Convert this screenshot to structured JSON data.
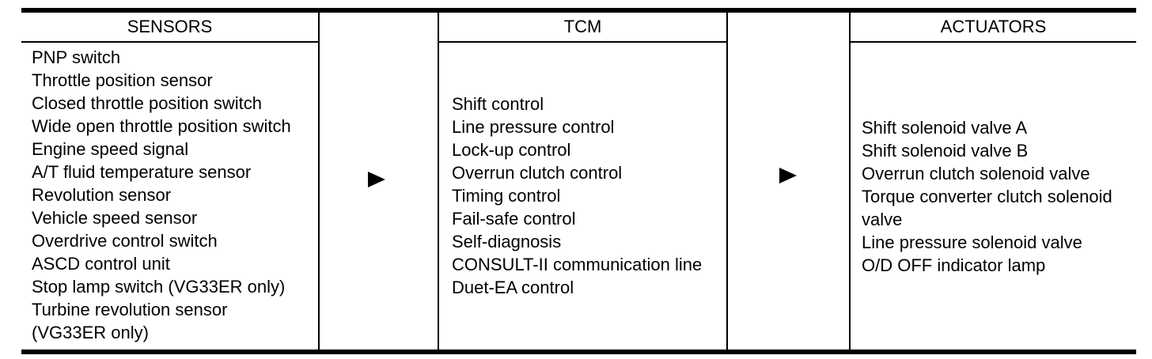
{
  "diagram": {
    "title_semantic": "A/T control system flow",
    "colors": {
      "background": "#ffffff",
      "line": "#000000",
      "text": "#000000"
    },
    "icons": {
      "flow_arrow": "right-arrow"
    },
    "columns": [
      {
        "header": "SENSORS",
        "items": [
          "PNP switch",
          "Throttle position sensor",
          "Closed throttle position switch",
          "Wide open throttle position switch",
          "Engine speed signal",
          "A/T fluid temperature sensor",
          "Revolution sensor",
          "Vehicle speed sensor",
          "Overdrive control switch",
          "ASCD control unit",
          "Stop lamp switch (VG33ER only)",
          "Turbine revolution sensor",
          "(VG33ER only)"
        ]
      },
      {
        "header": "TCM",
        "items": [
          "Shift control",
          "Line pressure control",
          "Lock-up control",
          "Overrun clutch control",
          "Timing control",
          "Fail-safe control",
          "Self-diagnosis",
          "CONSULT-II communication line",
          "Duet-EA control"
        ]
      },
      {
        "header": "ACTUATORS",
        "items": [
          "Shift solenoid valve A",
          "Shift solenoid valve B",
          "Overrun clutch solenoid valve",
          "Torque converter clutch solenoid",
          "valve",
          "Line pressure solenoid valve",
          "O/D OFF indicator lamp"
        ]
      }
    ]
  }
}
